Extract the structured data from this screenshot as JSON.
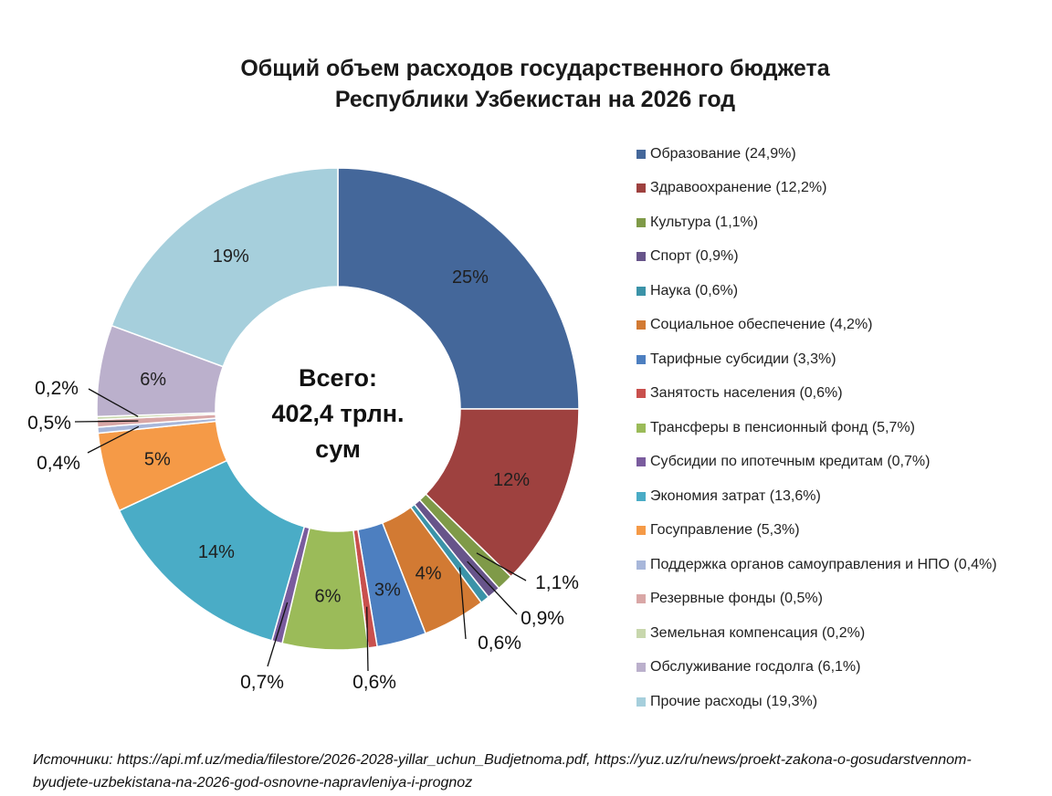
{
  "title": {
    "line1": "Общий объем расходов государственного бюджета",
    "line2": "Республики Узбекистан на 2026 год"
  },
  "center_label": {
    "line1": "Всего:",
    "line2": "402,4 трлн.",
    "line3": "сум"
  },
  "sources": "Источники: https://api.mf.uz/media/filestore/2026-2028-yillar_uchun_Budjetnoma.pdf, https://yuz.uz/ru/news/proekt-zakona-o-gosudarstvennom-byudjete-uzbekistana-na-2026-god-osnovne-napravleniya-i-prognoz",
  "chart_data": {
    "type": "pie",
    "variant": "donut",
    "legend_position": "right",
    "series": [
      {
        "name": "Образование",
        "value": 24.9,
        "legend": "Образование (24,9%)",
        "label": "25%",
        "color": "#44679a"
      },
      {
        "name": "Здравоохранение",
        "value": 12.2,
        "legend": "Здравоохранение (12,2%)",
        "label": "12%",
        "color": "#9e413f"
      },
      {
        "name": "Культура",
        "value": 1.1,
        "legend": "Культура (1,1%)",
        "label": "1,1%",
        "color": "#7f9a48"
      },
      {
        "name": "Спорт",
        "value": 0.9,
        "legend": "Спорт (0,9%)",
        "label": "0,9%",
        "color": "#67548a"
      },
      {
        "name": "Наука",
        "value": 0.6,
        "legend": "Наука (0,6%)",
        "label": "0,6%",
        "color": "#3b93a8"
      },
      {
        "name": "Социальное обеспечение",
        "value": 4.2,
        "legend": "Социальное обеспечение (4,2%)",
        "label": "4%",
        "color": "#d27a33"
      },
      {
        "name": "Тарифные субсидии",
        "value": 3.3,
        "legend": "Тарифные субсидии (3,3%)",
        "label": "3%",
        "color": "#4d7fc0"
      },
      {
        "name": "Занятость населения",
        "value": 0.6,
        "legend": "Занятость населения (0,6%)",
        "label": "0,6%",
        "color": "#c9504d"
      },
      {
        "name": "Трансферы в пенсионный фонд",
        "value": 5.7,
        "legend": "Трансферы в пенсионный фонд (5,7%)",
        "label": "6%",
        "color": "#9bbb59"
      },
      {
        "name": "Субсидии по ипотечным кредитам",
        "value": 0.7,
        "legend": "Субсидии по ипотечным кредитам (0,7%)",
        "label": "0,7%",
        "color": "#7a5c9e"
      },
      {
        "name": "Экономия затрат",
        "value": 13.6,
        "legend": "Экономия затрат (13,6%)",
        "label": "14%",
        "color": "#4aacc6"
      },
      {
        "name": "Госуправление",
        "value": 5.3,
        "legend": "Госуправление (5,3%)",
        "label": "5%",
        "color": "#f59a47"
      },
      {
        "name": "Поддержка органов самоуправления и НПО",
        "value": 0.4,
        "legend": "Поддержка органов самоуправления и НПО (0,4%)",
        "label": "0,4%",
        "color": "#a8b7da"
      },
      {
        "name": "Резервные фонды",
        "value": 0.5,
        "legend": "Резервные фонды (0,5%)",
        "label": "0,5%",
        "color": "#d9a7a6"
      },
      {
        "name": "Земельная компенсация",
        "value": 0.2,
        "legend": "Земельная компенсация (0,2%)",
        "label": "0,2%",
        "color": "#c8d7ad"
      },
      {
        "name": "Обслуживание госдолга",
        "value": 6.1,
        "legend": "Обслуживание госдолга (6,1%)",
        "label": "6%",
        "color": "#bbb0cc"
      },
      {
        "name": "Прочие расходы",
        "value": 19.3,
        "legend": "Прочие расходы (19,3%)",
        "label": "19%",
        "color": "#a6cfdc"
      }
    ]
  }
}
